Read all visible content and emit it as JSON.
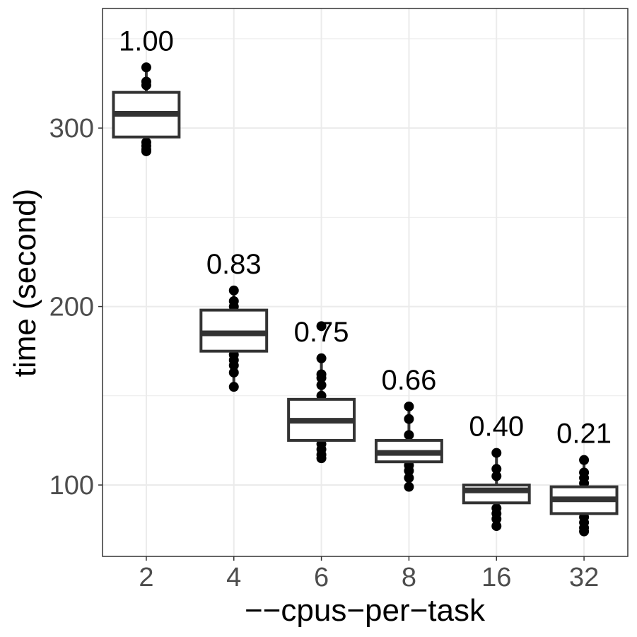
{
  "chart_data": {
    "type": "boxplot",
    "title": "",
    "xlabel": "−−cpus−per−task",
    "ylabel": "time (second)",
    "ylim": [
      60,
      367
    ],
    "yticks": [
      100,
      200,
      300
    ],
    "grid": true,
    "categories": [
      "2",
      "4",
      "6",
      "8",
      "16",
      "32"
    ],
    "boxes": [
      {
        "category": "2",
        "label": "1.00",
        "q1": 295,
        "median": 308,
        "q3": 320,
        "whisker_low": 287,
        "whisker_high": 334,
        "points": [
          334,
          326,
          324,
          292,
          290,
          288,
          287
        ]
      },
      {
        "category": "4",
        "label": "0.83",
        "q1": 175,
        "median": 185,
        "q3": 198,
        "whisker_low": 155,
        "whisker_high": 209,
        "points": [
          209,
          203,
          200,
          197,
          173,
          170,
          167,
          163,
          155
        ]
      },
      {
        "category": "6",
        "label": "0.75",
        "q1": 125,
        "median": 136,
        "q3": 148,
        "whisker_low": 115,
        "whisker_high": 171,
        "points": [
          189,
          171,
          162,
          160,
          156,
          150,
          123,
          120,
          117,
          115
        ]
      },
      {
        "category": "8",
        "label": "0.66",
        "q1": 113,
        "median": 118,
        "q3": 125,
        "whisker_low": 99,
        "whisker_high": 144,
        "points": [
          144,
          137,
          128,
          111,
          108,
          104,
          99
        ]
      },
      {
        "category": "16",
        "label": "0.40",
        "q1": 90,
        "median": 97,
        "q3": 100,
        "whisker_low": 77,
        "whisker_high": 118,
        "points": [
          118,
          109,
          105,
          87,
          84,
          81,
          77
        ]
      },
      {
        "category": "32",
        "label": "0.21",
        "q1": 84,
        "median": 92,
        "q3": 99,
        "whisker_low": 74,
        "whisker_high": 114,
        "points": [
          114,
          107,
          104,
          101,
          82,
          79,
          76,
          74
        ]
      }
    ],
    "colors": {
      "box": "#333333",
      "point": "#000000",
      "grid": "#ebebeb"
    }
  }
}
